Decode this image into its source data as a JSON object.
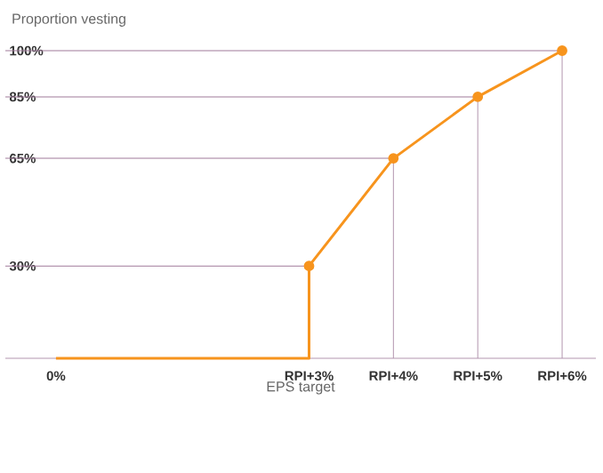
{
  "chart_data": {
    "type": "line",
    "ylabel": "Proportion vesting",
    "xlabel": "EPS target",
    "categories": [
      "0%",
      null,
      null,
      "RPI+3%",
      "RPI+4%",
      "RPI+5%",
      "RPI+6%"
    ],
    "series": [
      {
        "type": "step",
        "color": "#f7941d",
        "values": [
          0,
          0,
          0,
          30,
          null,
          null,
          null
        ],
        "marker": "none"
      },
      {
        "color": "#f7941d",
        "values": [
          null,
          null,
          null,
          30,
          65,
          85,
          100
        ],
        "marker": "circle"
      }
    ],
    "ylim": [
      0,
      100
    ],
    "yticks": [
      {
        "value": 30,
        "label": "30%"
      },
      {
        "value": 65,
        "label": "65%"
      },
      {
        "value": 85,
        "label": "85%"
      },
      {
        "value": 100,
        "label": "100%"
      }
    ],
    "ref_lines": [
      {
        "axis": "y",
        "value": 30,
        "color": "#a07a9a"
      },
      {
        "axis": "y",
        "value": 65,
        "color": "#a07a9a"
      },
      {
        "axis": "y",
        "value": 85,
        "color": "#a07a9a"
      },
      {
        "axis": "y",
        "value": 100,
        "color": "#a07a9a"
      },
      {
        "axis": "x",
        "value": "RPI+4%",
        "color": "#b395ae"
      },
      {
        "axis": "x",
        "value": "RPI+5%",
        "color": "#b395ae"
      },
      {
        "axis": "x",
        "value": "RPI+6%",
        "color": "#b395ae"
      }
    ],
    "grid": false
  }
}
